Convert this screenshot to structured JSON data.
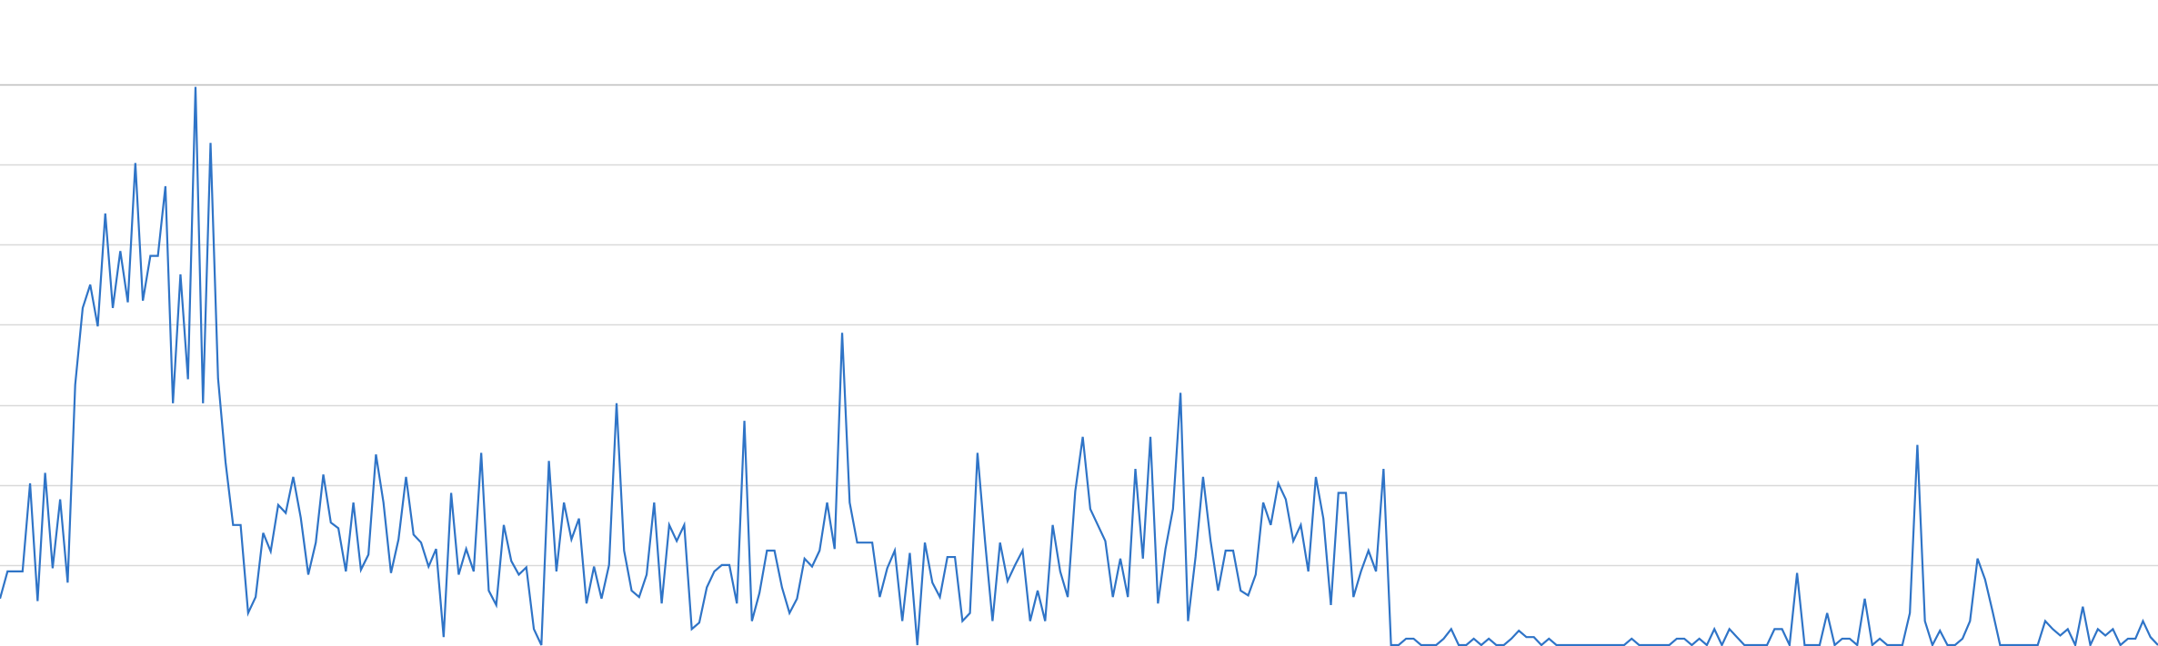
{
  "chart_data": {
    "type": "line",
    "title": "",
    "xlabel": "",
    "ylabel": "",
    "ylim": [
      0,
      7
    ],
    "grid": true,
    "grid_lines_y": [
      1,
      2,
      3,
      4,
      5,
      6,
      7
    ],
    "series_color": "#2f74c7",
    "series": [
      {
        "values": [
          0.58,
          0.92,
          0.92,
          0.92,
          2.02,
          0.55,
          2.15,
          0.96,
          1.82,
          0.78,
          3.25,
          4.21,
          4.5,
          3.98,
          5.39,
          4.21,
          4.92,
          4.28,
          6.02,
          4.3,
          4.86,
          4.86,
          5.73,
          3.02,
          4.63,
          3.32,
          6.97,
          3.02,
          6.27,
          3.33,
          2.28,
          1.5,
          1.5,
          0.4,
          0.6,
          1.4,
          1.17,
          1.75,
          1.65,
          2.1,
          1.59,
          0.88,
          1.28,
          2.13,
          1.53,
          1.46,
          0.92,
          1.78,
          0.94,
          1.13,
          2.38,
          1.78,
          0.9,
          1.32,
          2.1,
          1.38,
          1.28,
          0.98,
          1.2,
          0.1,
          1.9,
          0.88,
          1.2,
          0.92,
          2.4,
          0.68,
          0.5,
          1.5,
          1.05,
          0.88,
          0.97,
          0.2,
          0.0,
          2.3,
          0.92,
          1.78,
          1.32,
          1.58,
          0.52,
          0.98,
          0.58,
          1.0,
          3.02,
          1.18,
          0.68,
          0.6,
          0.88,
          1.78,
          0.52,
          1.5,
          1.3,
          1.5,
          0.2,
          0.28,
          0.72,
          0.92,
          1.0,
          1.0,
          0.52,
          2.8,
          0.3,
          0.65,
          1.18,
          1.18,
          0.72,
          0.4,
          0.58,
          1.08,
          0.98,
          1.18,
          1.78,
          1.2,
          3.9,
          1.78,
          1.28,
          1.28,
          1.28,
          0.6,
          0.96,
          1.18,
          0.3,
          1.15,
          0.0,
          1.28,
          0.78,
          0.6,
          1.1,
          1.1,
          0.3,
          0.4,
          2.4,
          1.3,
          0.3,
          1.28,
          0.8,
          1.0,
          1.18,
          0.3,
          0.68,
          0.3,
          1.5,
          0.92,
          0.6,
          1.92,
          2.6,
          1.7,
          1.5,
          1.3,
          0.6,
          1.08,
          0.6,
          2.2,
          1.08,
          2.6,
          0.52,
          1.2,
          1.7,
          3.15,
          0.3,
          1.1,
          2.1,
          1.3,
          0.68,
          1.18,
          1.18,
          0.68,
          0.62,
          0.88,
          1.78,
          1.5,
          2.02,
          1.82,
          1.3,
          1.5,
          0.92,
          2.1,
          1.58,
          0.5,
          1.9,
          1.9,
          0.6,
          0.92,
          1.18,
          0.92,
          2.2,
          0.0,
          0.0,
          0.08,
          0.08,
          0.0,
          0.0,
          0.0,
          0.08,
          0.2,
          0.0,
          0.0,
          0.08,
          0.0,
          0.08,
          0.0,
          0.0,
          0.08,
          0.18,
          0.1,
          0.1,
          0.0,
          0.08,
          0.0,
          0.0,
          0.0,
          0.0,
          0.0,
          0.0,
          0.0,
          0.0,
          0.0,
          0.0,
          0.08,
          0.0,
          0.0,
          0.0,
          0.0,
          0.0,
          0.08,
          0.08,
          0.0,
          0.08,
          0.0,
          0.2,
          0.0,
          0.2,
          0.1,
          0.0,
          0.0,
          0.0,
          0.0,
          0.2,
          0.2,
          0.0,
          0.9,
          0.0,
          0.0,
          0.0,
          0.4,
          0.0,
          0.08,
          0.08,
          0.0,
          0.58,
          0.0,
          0.08,
          0.0,
          0.0,
          0.0,
          0.4,
          2.5,
          0.3,
          0.0,
          0.18,
          0.0,
          0.0,
          0.08,
          0.3,
          1.08,
          0.82,
          0.42,
          0.0,
          0.0,
          0.0,
          0.0,
          0.0,
          0.0,
          0.3,
          0.2,
          0.12,
          0.2,
          0.0,
          0.48,
          0.0,
          0.2,
          0.12,
          0.2,
          0.0,
          0.08,
          0.08,
          0.3,
          0.1,
          0.0
        ]
      }
    ]
  }
}
